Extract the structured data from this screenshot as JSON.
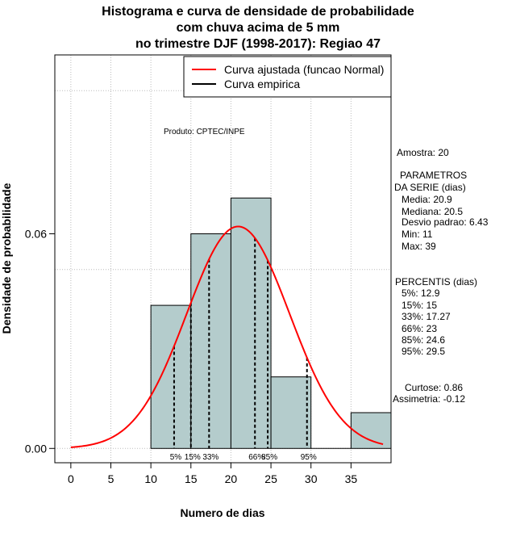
{
  "chart_data": {
    "type": "bar",
    "title_lines": [
      "Histograma e curva de densidade de probabilidade",
      "com chuva acima de 5 mm",
      "no trimestre DJF (1998-2017): Regiao 47"
    ],
    "xlabel": "Numero de dias",
    "ylabel": "Densidade de probabilidade",
    "xlim": [
      -2,
      40
    ],
    "ylim": [
      -0.004,
      0.11
    ],
    "x_ticks": [
      0,
      5,
      10,
      15,
      20,
      25,
      30,
      35
    ],
    "y_ticks": [
      0.0,
      0.06
    ],
    "y_tick_labels": [
      "0.00",
      "0.06"
    ],
    "bin_edges": [
      10,
      15,
      20,
      25,
      30,
      35,
      40
    ],
    "densities": [
      0.04,
      0.06,
      0.07,
      0.02,
      0.0,
      0.01
    ],
    "normal_fit": {
      "mean": 20.9,
      "sd": 6.43,
      "xmin": 0,
      "xmax": 39
    },
    "percentile_lines": [
      {
        "label": "5%",
        "x": 12.9
      },
      {
        "label": "15%",
        "x": 15
      },
      {
        "label": "33%",
        "x": 17.27
      },
      {
        "label": "66%",
        "x": 23
      },
      {
        "label": "85%",
        "x": 24.6
      },
      {
        "label": "95%",
        "x": 29.5
      }
    ],
    "legend": [
      {
        "label": "Curva ajustada (funcao Normal)",
        "color": "#ff0000"
      },
      {
        "label": "Curva empirica",
        "color": "#000000"
      }
    ],
    "annotation": "Produto: CPTEC/INPE",
    "colors": {
      "bar_fill": "#b4cccc",
      "curve": "#ff0000",
      "grid": "#bbbbbb"
    }
  },
  "stats": {
    "amostra": "Amostra: 20",
    "params_title": "PARAMETROS",
    "params_subtitle": "DA SERIE (dias)",
    "media": "Media: 20.9",
    "mediana": "Mediana: 20.5",
    "desvio": "Desvio padrao: 6.43",
    "min": "Min: 11",
    "max": "Max: 39",
    "percentis_title": "PERCENTIS (dias)",
    "p5": "5%: 12.9",
    "p15": "15%: 15",
    "p33": "33%: 17.27",
    "p66": "66%: 23",
    "p85": "85%: 24.6",
    "p95": "95%: 29.5",
    "curtose": "Curtose: 0.86",
    "assimetria": "Assimetria: -0.12"
  }
}
